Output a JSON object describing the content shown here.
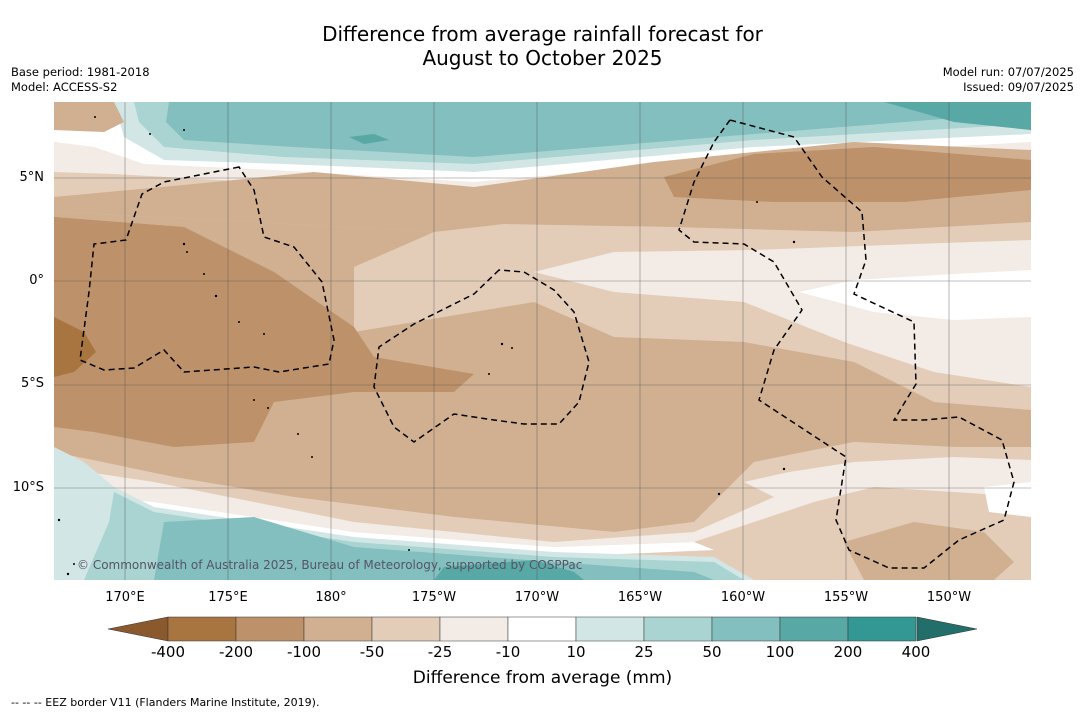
{
  "title_line1": "Difference from average rainfall forecast for",
  "title_line2": "August to October 2025",
  "base_period": "Base period: 1981-2018",
  "model": "Model: ACCESS-S2",
  "model_run": "Model run: 07/07/2025",
  "issued": "Issued: 09/07/2025",
  "lat_labels": [
    "5°N",
    "0°",
    "5°S",
    "10°S"
  ],
  "lon_labels": [
    "170°E",
    "175°E",
    "180°",
    "175°W",
    "170°W",
    "165°W",
    "160°W",
    "155°W",
    "150°W"
  ],
  "copyright": "© Commonwealth of Australia 2025, Bureau of Meteorology, supported by COSPPac",
  "colorbar": {
    "ticks": [
      "-400",
      "-200",
      "-100",
      "-50",
      "-25",
      "-10",
      "10",
      "25",
      "50",
      "100",
      "200",
      "400"
    ],
    "colors": [
      "#a87440",
      "#bd9169",
      "#d0b090",
      "#e3cdb8",
      "#f3ebe5",
      "#ffffff",
      "#d2e7e5",
      "#a9d4d1",
      "#82bfbe",
      "#58a8a5",
      "#339893"
    ],
    "low_color": "#8a5a2e",
    "high_color": "#226e6a",
    "title": "Difference from average (mm)"
  },
  "footer": "--  --  -- EEZ border V11 (Flanders Marine Institute, 2019)."
}
